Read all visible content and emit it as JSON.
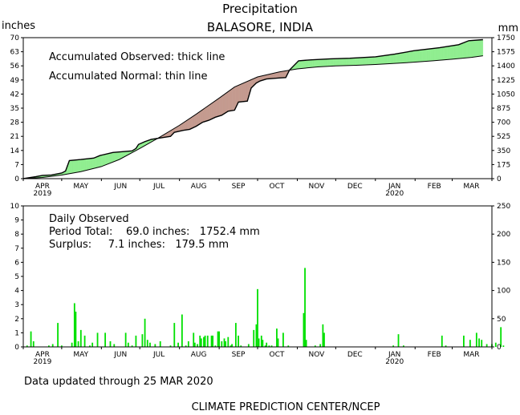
{
  "header": {
    "title": "Precipitation",
    "subtitle": "BALASORE,  INDIA",
    "left_unit": "inches",
    "right_unit": "mm"
  },
  "footer": {
    "updated": "Data updated through 25 MAR 2020",
    "credit": "CLIMATE PREDICTION CENTER/NCEP"
  },
  "months": [
    "APR",
    "MAY",
    "JUN",
    "JUL",
    "AUG",
    "SEP",
    "OCT",
    "NOV",
    "DEC",
    "JAN",
    "FEB",
    "MAR"
  ],
  "years": [
    {
      "label": "2019",
      "month_index": 0
    },
    {
      "label": "2020",
      "month_index": 9
    }
  ],
  "colors": {
    "surplus_fill": "#90ee90",
    "deficit_fill": "#c49a8f",
    "bar": "#00e000",
    "axis": "#000000"
  },
  "chart_data": [
    {
      "type": "area",
      "name": "accumulated",
      "annotations": [
        "Accumulated Observed: thick line",
        "Accumulated Normal: thin line"
      ],
      "ylim": [
        0,
        70
      ],
      "ylim_right": [
        0,
        1750
      ],
      "yticks_left": [
        "0",
        "7",
        "14",
        "21",
        "28",
        "35",
        "42",
        "49",
        "56",
        "63",
        "70"
      ],
      "yticks_right": [
        "0",
        "175",
        "350",
        "525",
        "700",
        "875",
        "1050",
        "1225",
        "1400",
        "1575",
        "1750"
      ],
      "x_unit": "days since 1 APR 2019",
      "observed": [
        [
          0,
          0
        ],
        [
          5,
          0.5
        ],
        [
          10,
          1.0
        ],
        [
          15,
          1.6
        ],
        [
          22,
          1.8
        ],
        [
          30,
          2.8
        ],
        [
          33,
          3.8
        ],
        [
          36,
          9.0
        ],
        [
          45,
          9.5
        ],
        [
          55,
          10.2
        ],
        [
          60,
          11.5
        ],
        [
          70,
          13.0
        ],
        [
          85,
          13.8
        ],
        [
          88,
          15.0
        ],
        [
          90,
          17.0
        ],
        [
          95,
          18.4
        ],
        [
          100,
          19.5
        ],
        [
          110,
          20.5
        ],
        [
          115,
          21.0
        ],
        [
          118,
          23.0
        ],
        [
          125,
          24.0
        ],
        [
          130,
          24.5
        ],
        [
          135,
          26.0
        ],
        [
          140,
          28.0
        ],
        [
          145,
          29.0
        ],
        [
          150,
          30.5
        ],
        [
          155,
          31.5
        ],
        [
          160,
          33.5
        ],
        [
          165,
          34.0
        ],
        [
          168,
          38.0
        ],
        [
          175,
          38.5
        ],
        [
          178,
          45.0
        ],
        [
          182,
          47.5
        ],
        [
          185,
          48.5
        ],
        [
          190,
          49.5
        ],
        [
          200,
          50.0
        ],
        [
          205,
          50.2
        ],
        [
          208,
          54.0
        ],
        [
          215,
          58.5
        ],
        [
          225,
          59.0
        ],
        [
          240,
          59.5
        ],
        [
          255,
          59.8
        ],
        [
          275,
          60.5
        ],
        [
          290,
          61.8
        ],
        [
          305,
          63.5
        ],
        [
          325,
          65.0
        ],
        [
          340,
          66.5
        ],
        [
          348,
          68.5
        ],
        [
          359,
          69.0
        ]
      ],
      "normal": [
        [
          0,
          0
        ],
        [
          15,
          0.6
        ],
        [
          30,
          1.8
        ],
        [
          45,
          3.5
        ],
        [
          61,
          6.0
        ],
        [
          75,
          9.5
        ],
        [
          91,
          15.0
        ],
        [
          105,
          20.0
        ],
        [
          122,
          26.5
        ],
        [
          135,
          32.0
        ],
        [
          153,
          40.0
        ],
        [
          165,
          45.5
        ],
        [
          183,
          50.5
        ],
        [
          200,
          53.0
        ],
        [
          214,
          54.5
        ],
        [
          230,
          55.5
        ],
        [
          244,
          56.0
        ],
        [
          260,
          56.3
        ],
        [
          275,
          56.7
        ],
        [
          290,
          57.2
        ],
        [
          305,
          57.8
        ],
        [
          320,
          58.5
        ],
        [
          335,
          59.3
        ],
        [
          350,
          60.2
        ],
        [
          359,
          61.0
        ]
      ]
    },
    {
      "type": "bar",
      "name": "daily",
      "title": "Daily Observed",
      "period_total": "Period Total:    69.0 inches:   1752.4 mm",
      "surplus": "Surplus:     7.1 inches:   179.5 mm",
      "ylim": [
        0,
        10
      ],
      "ylim_right": [
        0,
        250
      ],
      "yticks_left": [
        "0",
        "1",
        "2",
        "3",
        "4",
        "5",
        "6",
        "7",
        "8",
        "9",
        "10"
      ],
      "yticks_right": [
        "0",
        "50",
        "100",
        "150",
        "200",
        "250"
      ],
      "x_unit": "days since 1 APR 2019",
      "bars": [
        [
          3,
          0.1
        ],
        [
          6,
          1.1
        ],
        [
          8,
          0.4
        ],
        [
          20,
          0.1
        ],
        [
          23,
          0.2
        ],
        [
          27,
          1.7
        ],
        [
          30,
          0.1
        ],
        [
          38,
          0.3
        ],
        [
          40,
          3.1
        ],
        [
          41,
          2.5
        ],
        [
          43,
          0.4
        ],
        [
          45,
          1.2
        ],
        [
          48,
          0.8
        ],
        [
          52,
          0.1
        ],
        [
          54,
          0.3
        ],
        [
          58,
          1.0
        ],
        [
          64,
          1.0
        ],
        [
          68,
          0.4
        ],
        [
          71,
          0.2
        ],
        [
          80,
          1.0
        ],
        [
          82,
          0.3
        ],
        [
          85,
          0.1
        ],
        [
          88,
          0.8
        ],
        [
          93,
          0.9
        ],
        [
          95,
          2.0
        ],
        [
          97,
          0.5
        ],
        [
          99,
          0.3
        ],
        [
          103,
          0.2
        ],
        [
          107,
          0.4
        ],
        [
          115,
          0.1
        ],
        [
          118,
          1.7
        ],
        [
          121,
          0.3
        ],
        [
          124,
          2.3
        ],
        [
          127,
          0.1
        ],
        [
          129,
          0.4
        ],
        [
          133,
          1.0
        ],
        [
          134,
          0.3
        ],
        [
          136,
          0.2
        ],
        [
          138,
          0.8
        ],
        [
          139,
          0.6
        ],
        [
          141,
          0.7
        ],
        [
          142,
          0.8
        ],
        [
          144,
          0.8
        ],
        [
          147,
          0.8
        ],
        [
          148,
          0.8
        ],
        [
          150,
          0.1
        ],
        [
          152,
          1.1
        ],
        [
          153,
          1.1
        ],
        [
          155,
          0.4
        ],
        [
          157,
          0.6
        ],
        [
          158,
          0.4
        ],
        [
          160,
          0.7
        ],
        [
          162,
          0.1
        ],
        [
          163,
          0.2
        ],
        [
          166,
          1.7
        ],
        [
          168,
          0.8
        ],
        [
          170,
          0.1
        ],
        [
          176,
          0.2
        ],
        [
          180,
          1.2
        ],
        [
          182,
          1.6
        ],
        [
          183,
          4.1
        ],
        [
          184,
          0.6
        ],
        [
          186,
          0.8
        ],
        [
          187,
          0.5
        ],
        [
          189,
          0.1
        ],
        [
          190,
          0.3
        ],
        [
          192,
          0.1
        ],
        [
          194,
          0.1
        ],
        [
          198,
          1.3
        ],
        [
          199,
          0.6
        ],
        [
          203,
          1.0
        ],
        [
          207,
          0.1
        ],
        [
          219,
          2.4
        ],
        [
          220,
          5.6
        ],
        [
          221,
          0.5
        ],
        [
          228,
          0.1
        ],
        [
          232,
          0.2
        ],
        [
          234,
          1.6
        ],
        [
          235,
          1.0
        ],
        [
          289,
          0.1
        ],
        [
          293,
          0.9
        ],
        [
          297,
          0.1
        ],
        [
          327,
          0.8
        ],
        [
          330,
          0.1
        ],
        [
          344,
          0.8
        ],
        [
          349,
          0.5
        ],
        [
          354,
          1.0
        ],
        [
          356,
          0.6
        ],
        [
          358,
          0.5
        ],
        [
          362,
          0.2
        ],
        [
          366,
          0.2
        ],
        [
          369,
          0.3
        ],
        [
          373,
          1.4
        ],
        [
          375,
          0.1
        ]
      ]
    }
  ]
}
